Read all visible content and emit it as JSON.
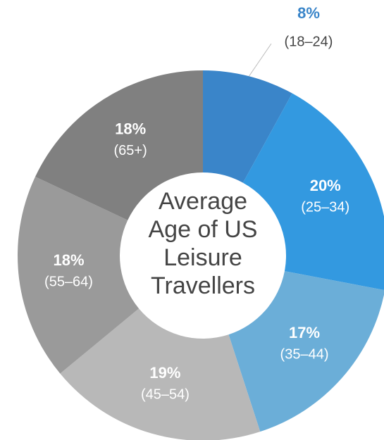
{
  "chart_data": {
    "type": "donut",
    "title": "Average Age of US Leisure Travellers",
    "categories": [
      "(18–24)",
      "(25–34)",
      "(35–44)",
      "(45–54)",
      "(55–64)",
      "(65+)"
    ],
    "values": [
      8,
      20,
      17,
      19,
      18,
      18
    ],
    "value_labels": [
      "8%",
      "20%",
      "17%",
      "19%",
      "18%",
      "18%"
    ],
    "colors": [
      "#3a85c9",
      "#3399e0",
      "#6baed8",
      "#b8b8b8",
      "#9a9a9a",
      "#808080"
    ]
  }
}
